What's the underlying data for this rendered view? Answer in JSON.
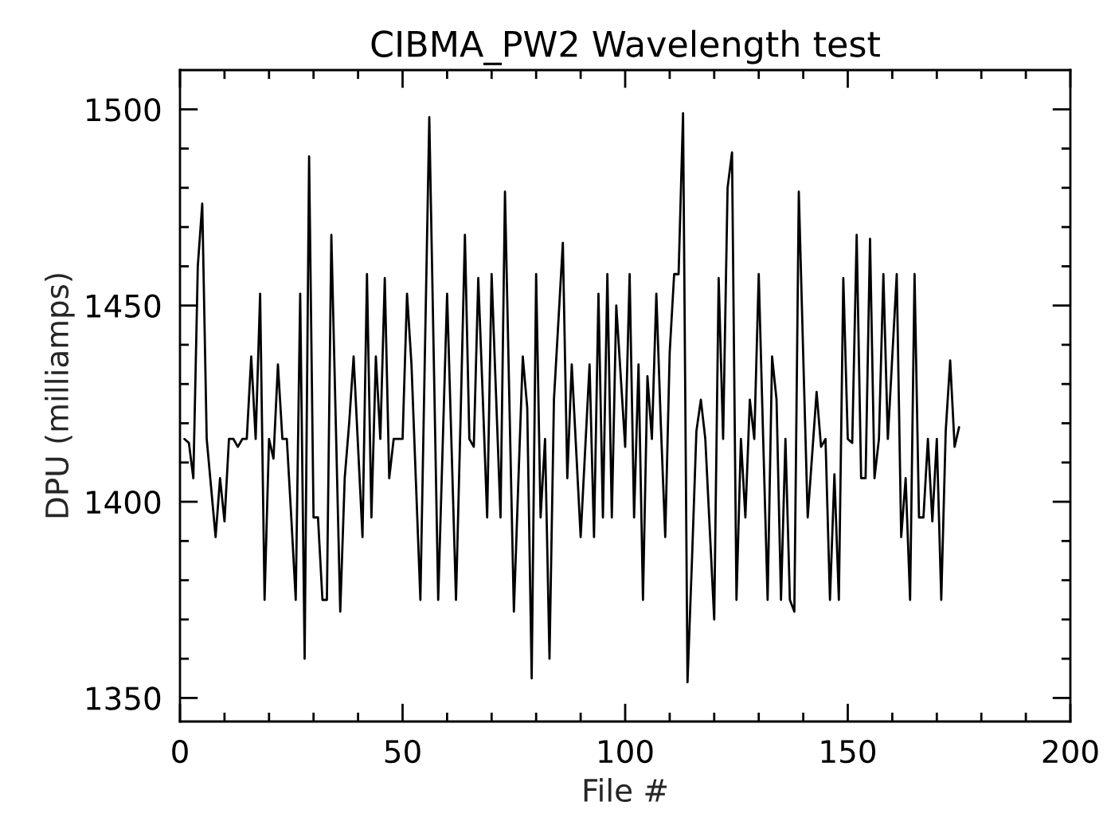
{
  "chart_data": {
    "type": "line",
    "title": "CIBMA_PW2 Wavelength test",
    "xlabel": "File #",
    "ylabel": "DPU (milliamps)",
    "x": [
      1,
      2,
      3,
      4,
      5,
      6,
      7,
      8,
      9,
      10,
      11,
      12,
      13,
      14,
      15,
      16,
      17,
      18,
      19,
      20,
      21,
      22,
      23,
      24,
      25,
      26,
      27,
      28,
      29,
      30,
      31,
      32,
      33,
      34,
      35,
      36,
      37,
      38,
      39,
      40,
      41,
      42,
      43,
      44,
      45,
      46,
      47,
      48,
      49,
      50,
      51,
      52,
      53,
      54,
      55,
      56,
      57,
      58,
      59,
      60,
      61,
      62,
      63,
      64,
      65,
      66,
      67,
      68,
      69,
      70,
      71,
      72,
      73,
      74,
      75,
      76,
      77,
      78,
      79,
      80,
      81,
      82,
      83,
      84,
      85,
      86,
      87,
      88,
      89,
      90,
      91,
      92,
      93,
      94,
      95,
      96,
      97,
      98,
      99,
      100,
      101,
      102,
      103,
      104,
      105,
      106,
      107,
      108,
      109,
      110,
      111,
      112,
      113,
      114,
      115,
      116,
      117,
      118,
      119,
      120,
      121,
      122,
      123,
      124,
      125,
      126,
      127,
      128,
      129,
      130,
      131,
      132,
      133,
      134,
      135,
      136,
      137,
      138,
      139,
      140,
      141,
      142,
      143,
      144,
      145,
      146,
      147,
      148,
      149,
      150,
      151,
      152,
      153,
      154,
      155,
      156,
      157,
      158,
      159,
      160,
      161,
      162,
      163,
      164,
      165,
      166,
      167,
      168,
      169,
      170,
      171,
      172,
      173,
      174,
      175
    ],
    "series": [
      {
        "color": "#000000",
        "values": [
          1416,
          1415,
          1406,
          1460,
          1476,
          1416,
          null,
          1391,
          1406,
          1395,
          1416,
          1416,
          1414,
          1416,
          1416,
          1437,
          1416,
          1453,
          1375,
          1416,
          1411,
          1435,
          1416,
          1416,
          1396,
          1375,
          1453,
          1360,
          1488,
          1396,
          1396,
          1375,
          1375,
          1468,
          1420,
          1372,
          1406,
          1420,
          1437,
          1414,
          1391,
          1458,
          1396,
          1437,
          1416,
          1457,
          1406,
          1416,
          1416,
          1416,
          1453,
          1435,
          1405,
          1375,
          1437,
          1498,
          1437,
          1375,
          1414,
          1453,
          1414,
          1375,
          1420,
          1468,
          1416,
          1414,
          1457,
          1427,
          1396,
          1458,
          1427,
          1396,
          1479,
          1425,
          1372,
          1405,
          1437,
          1424,
          1355,
          1458,
          1396,
          1416,
          1360,
          1426,
          null,
          1466,
          1406,
          1435,
          1413,
          1391,
          1413,
          1435,
          1391,
          1453,
          1396,
          1458,
          1396,
          1450,
          null,
          1414,
          1458,
          1396,
          1435,
          1375,
          1432,
          1416,
          1453,
          1420,
          1391,
          1438,
          1458,
          1458,
          1499,
          1354,
          1385,
          1418,
          1426,
          1416,
          null,
          1370,
          1457,
          1416,
          1480,
          1489,
          1375,
          1416,
          1396,
          1426,
          1416,
          1458,
          1416,
          1375,
          1437,
          1426,
          1375,
          1416,
          1375,
          1372,
          1479,
          1437,
          1396,
          1412,
          1428,
          1414,
          1416,
          1375,
          1407,
          1375,
          1457,
          1416,
          1415,
          1468,
          1406,
          1406,
          1467,
          1406,
          1416,
          1458,
          1416,
          1437,
          1458,
          1391,
          1406,
          1375,
          1458,
          1396,
          1396,
          1416,
          1395,
          1416,
          1375,
          1418,
          1436,
          1414,
          1419
        ]
      }
    ],
    "xlim": [
      0,
      200
    ],
    "xticks": [
      0,
      {
        "value": 10,
        "label": null
      },
      {
        "value": 20,
        "label": null
      },
      {
        "value": 30,
        "label": null
      },
      {
        "value": 40,
        "label": null
      },
      50,
      {
        "value": 60,
        "label": null
      },
      {
        "value": 70,
        "label": null
      },
      {
        "value": 80,
        "label": null
      },
      {
        "value": 90,
        "label": null
      },
      100,
      {
        "value": 110,
        "label": null
      },
      {
        "value": 120,
        "label": null
      },
      {
        "value": 130,
        "label": null
      },
      {
        "value": 140,
        "label": null
      },
      150,
      {
        "value": 160,
        "label": null
      },
      {
        "value": 170,
        "label": null
      },
      {
        "value": 180,
        "label": null
      },
      {
        "value": 190,
        "label": null
      },
      200
    ],
    "ylim": [
      1344,
      1510
    ],
    "yticks": [
      {
        "value": 1350,
        "label": "1350"
      },
      {
        "value": 1360,
        "label": null
      },
      {
        "value": 1370,
        "label": null
      },
      {
        "value": 1380,
        "label": null
      },
      {
        "value": 1390,
        "label": null
      },
      1400,
      {
        "value": 1410,
        "label": null
      },
      {
        "value": 1420,
        "label": null
      },
      {
        "value": 1430,
        "label": null
      },
      {
        "value": 1440,
        "label": null
      },
      1450,
      {
        "value": 1460,
        "label": null
      },
      {
        "value": 1470,
        "label": null
      },
      {
        "value": 1480,
        "label": null
      },
      {
        "value": 1490,
        "label": null
      },
      1500
    ],
    "grid": false,
    "marker": "none",
    "line_style": "solid"
  }
}
